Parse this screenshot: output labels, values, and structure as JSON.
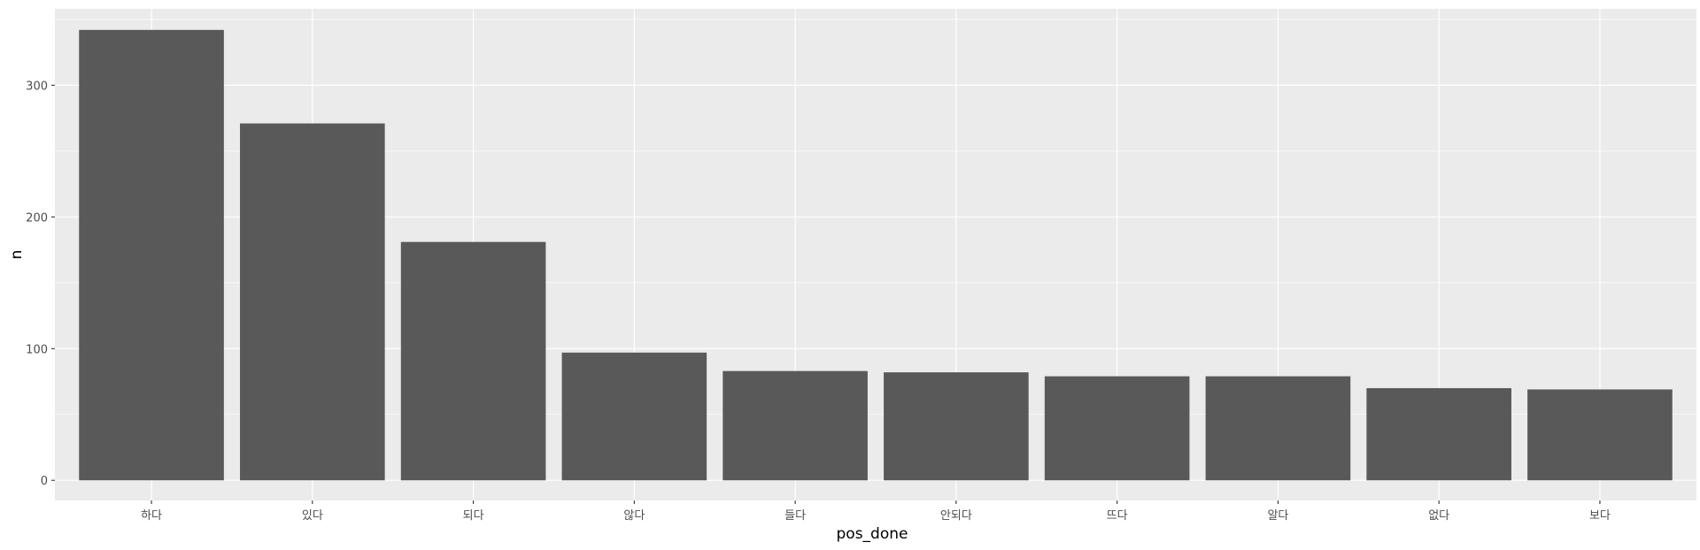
{
  "chart_data": {
    "type": "bar",
    "xlabel": "pos_done",
    "ylabel": "n",
    "categories": [
      "하다",
      "있다",
      "되다",
      "않다",
      "들다",
      "안되다",
      "뜨다",
      "알다",
      "없다",
      "보다"
    ],
    "values": [
      342,
      271,
      181,
      97,
      83,
      82,
      79,
      79,
      70,
      69
    ],
    "ylim": [
      -15.3,
      358
    ],
    "yticks": [
      0,
      100,
      200,
      300
    ],
    "grid": true,
    "colors": {
      "panel": "#ebebeb",
      "grid_major": "#ffffff",
      "bar": "#595959",
      "tick_text": "#4d4d4d",
      "tick_mark": "#333333"
    }
  }
}
